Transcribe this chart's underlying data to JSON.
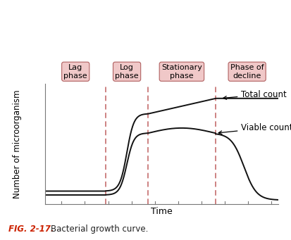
{
  "title": "Bacterial Growth Curve",
  "fig_label": "FIG. 2-17.",
  "fig_caption": "Bacterial growth curve.",
  "xlabel": "Time",
  "ylabel": "Number of microorganism",
  "background_color": "#ffffff",
  "phase_labels": [
    "Lag\nphase",
    "Log\nphase",
    "Stationary\nphase",
    "Phase of\ndecline"
  ],
  "vline_positions": [
    0.26,
    0.44,
    0.73
  ],
  "vline_color": "#c06060",
  "phase_box_color": "#f0c8c8",
  "phase_box_edge": "#b06060",
  "curve_color": "#111111",
  "total_count_label": "Total count",
  "viable_count_label": "Viable count"
}
